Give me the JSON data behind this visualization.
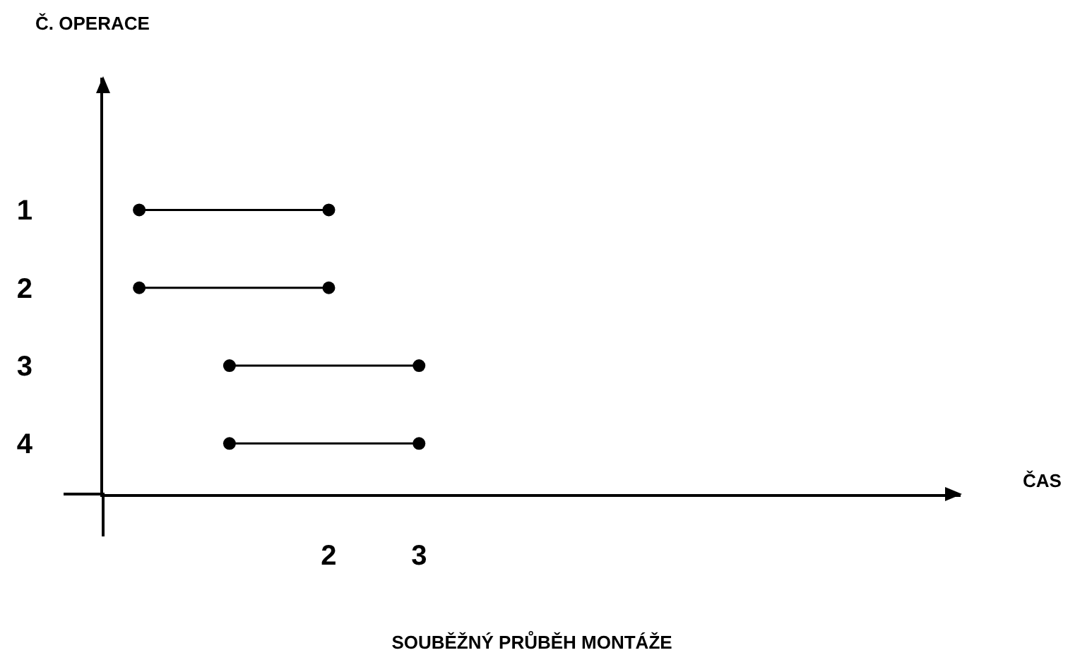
{
  "chart_data": {
    "type": "line",
    "title": "SOUBĚŽNÝ PRŮBĚH MONTÁŽE",
    "xlabel": "ČAS",
    "ylabel": "Č. OPERACE",
    "series": [
      {
        "color": "#000000",
        "x": [
          -0.1,
          2
        ],
        "values": [
          1,
          1
        ]
      },
      {
        "color": "#000000",
        "x": [
          -0.1,
          2
        ],
        "values": [
          2,
          2
        ]
      },
      {
        "color": "#000000",
        "x": [
          0.9,
          3
        ],
        "values": [
          3,
          3
        ]
      },
      {
        "color": "#000000",
        "x": [
          0.9,
          3
        ],
        "values": [
          4,
          4
        ]
      }
    ],
    "xlim": [
      -0.5,
      9
    ],
    "xticks": [
      2,
      3
    ],
    "ylim": [
      4.65,
      -0.7
    ],
    "yticks": [
      1,
      2,
      3,
      4
    ],
    "grid": false,
    "marker": "circle",
    "line_style": "solid"
  }
}
